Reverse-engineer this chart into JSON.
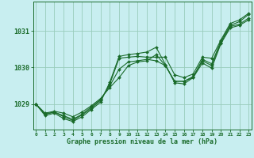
{
  "xlabel": "Graphe pression niveau de la mer (hPa)",
  "bg_color": "#c8eef0",
  "grid_color": "#99ccbb",
  "line_color": "#1a6b2a",
  "x_ticks": [
    0,
    1,
    2,
    3,
    4,
    5,
    6,
    7,
    8,
    9,
    10,
    11,
    12,
    13,
    14,
    15,
    16,
    17,
    18,
    19,
    20,
    21,
    22,
    23
  ],
  "y_ticks": [
    1029,
    1030,
    1031
  ],
  "ylim": [
    1028.3,
    1031.8
  ],
  "xlim": [
    -0.3,
    23.3
  ],
  "series": [
    [
      1029.0,
      1028.75,
      1028.8,
      1028.75,
      1028.65,
      1028.78,
      1028.95,
      1029.15,
      1029.45,
      1029.72,
      1030.05,
      1030.15,
      1030.18,
      1030.35,
      1030.05,
      1029.62,
      1029.62,
      1029.72,
      1030.12,
      1029.98,
      1030.65,
      1031.08,
      1031.15,
      1031.3
    ],
    [
      1029.0,
      1028.72,
      1028.78,
      1028.68,
      1028.58,
      1028.72,
      1028.92,
      1029.12,
      1029.5,
      1029.95,
      1030.15,
      1030.18,
      1030.22,
      1030.18,
      1030.05,
      1029.62,
      1029.62,
      1029.75,
      1030.18,
      1030.05,
      1030.68,
      1031.12,
      1031.18,
      1031.35
    ],
    [
      1029.0,
      1028.72,
      1028.78,
      1028.65,
      1028.55,
      1028.7,
      1028.88,
      1029.1,
      1029.55,
      1030.25,
      1030.28,
      1030.3,
      1030.28,
      1030.28,
      1030.28,
      1029.8,
      1029.72,
      1029.82,
      1030.28,
      1030.25,
      1030.75,
      1031.2,
      1031.3,
      1031.48
    ],
    [
      1029.0,
      1028.68,
      1028.75,
      1028.6,
      1028.52,
      1028.65,
      1028.85,
      1029.05,
      1029.6,
      1030.3,
      1030.35,
      1030.38,
      1030.42,
      1030.55,
      1030.08,
      1029.58,
      1029.55,
      1029.72,
      1030.22,
      1030.1,
      1030.72,
      1031.15,
      1031.25,
      1031.45
    ]
  ]
}
